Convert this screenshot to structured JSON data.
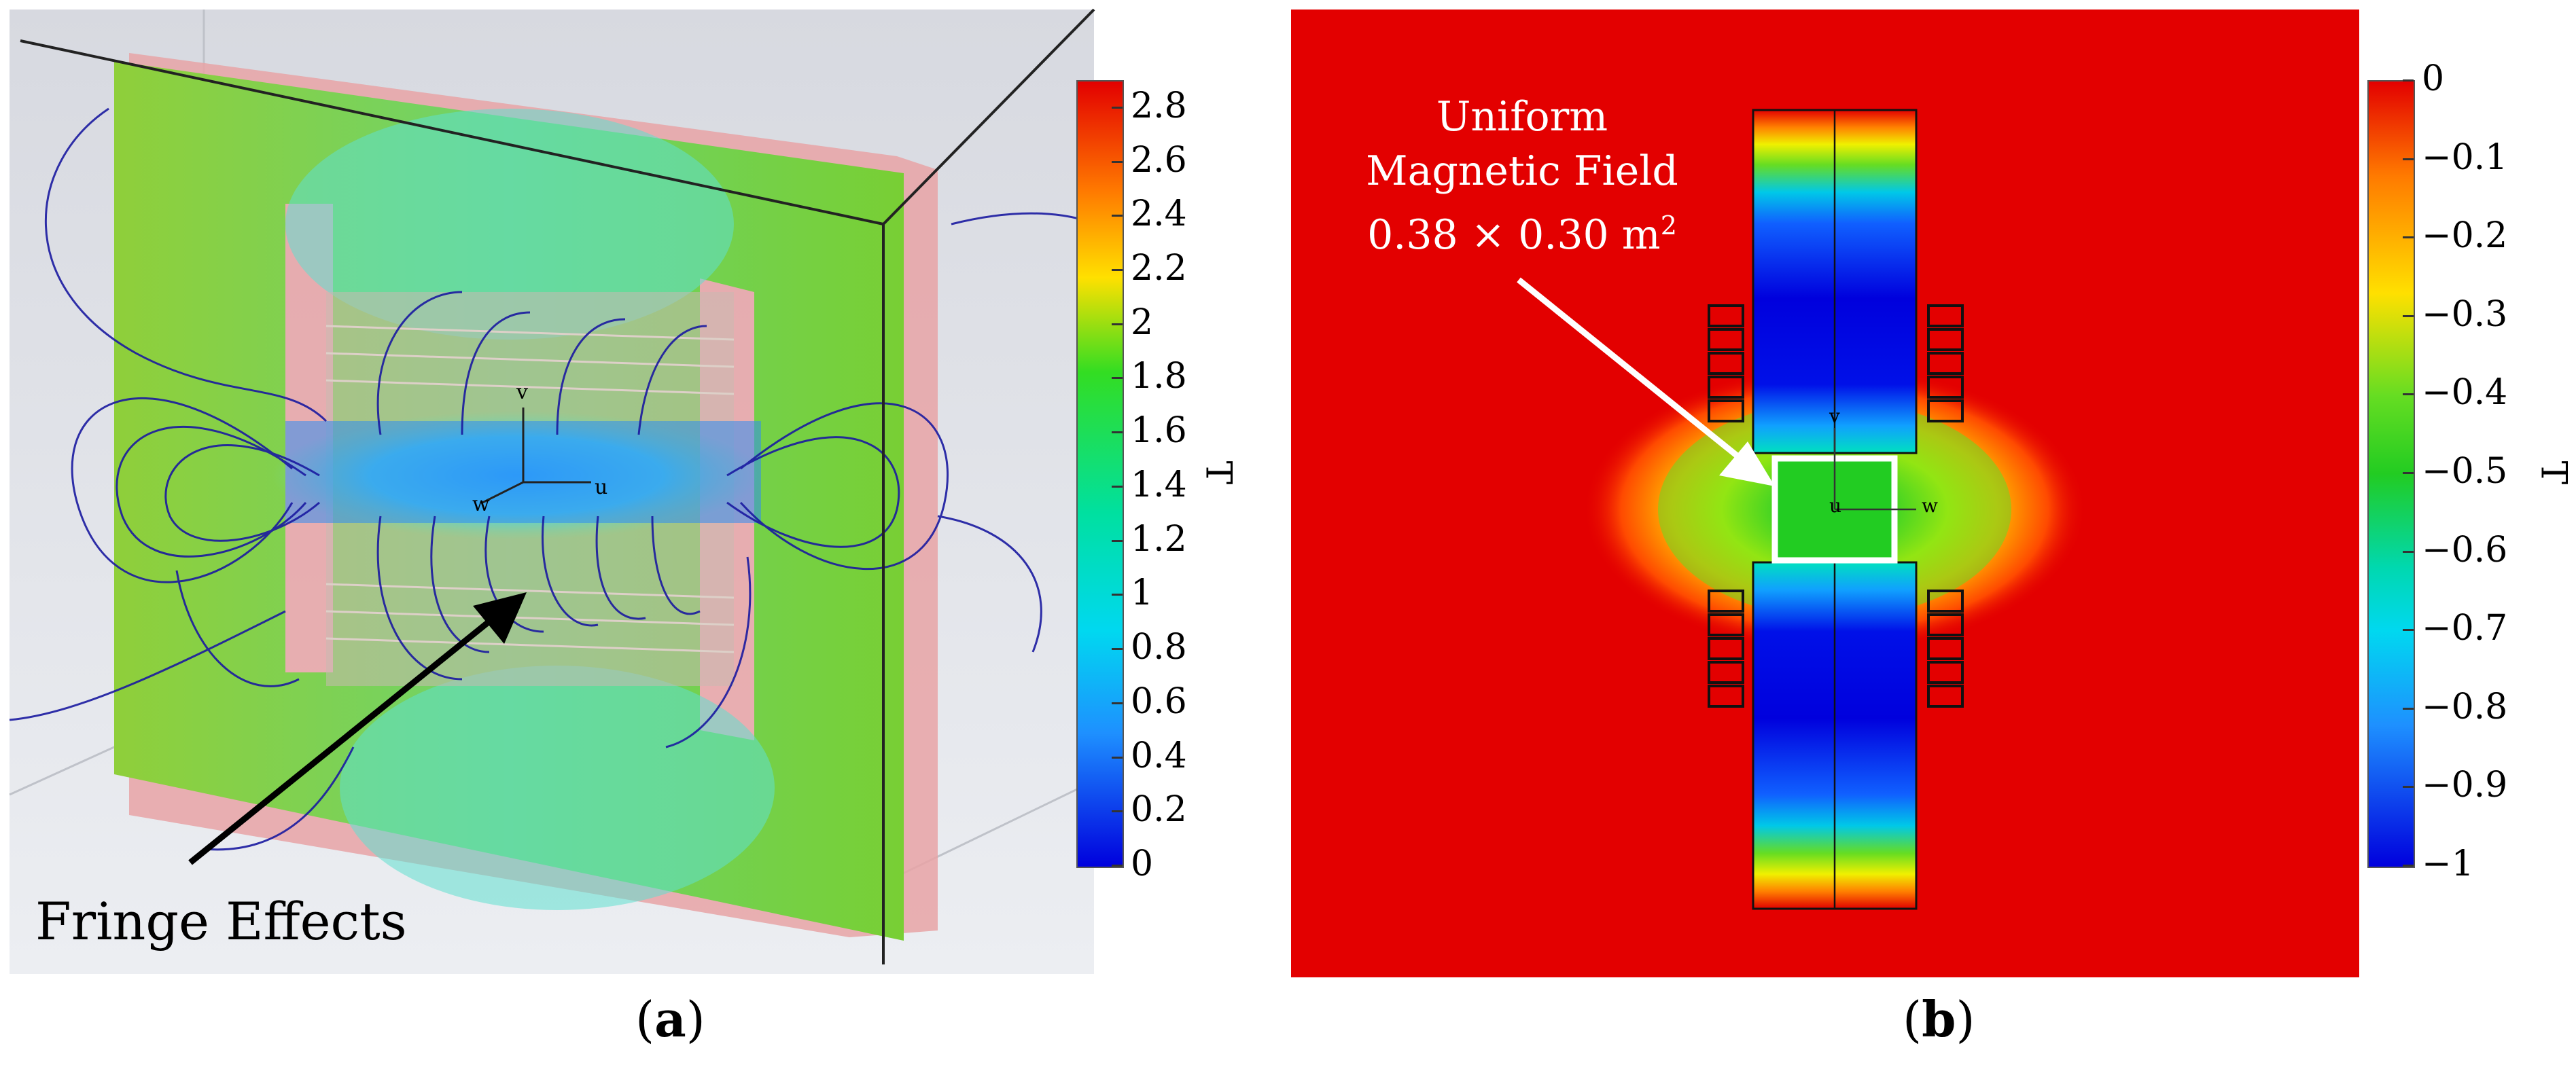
{
  "panel_a": {
    "annotation": "Fringe Effects",
    "caption_open": "(",
    "caption_letter": "a",
    "caption_close": ")",
    "colorbar": {
      "ticks": [
        "2.8",
        "2.6",
        "2.4",
        "2.2",
        "2",
        "1.8",
        "1.6",
        "1.4",
        "1.2",
        "1",
        "0.8",
        "0.6",
        "0.4",
        "0.2",
        "0"
      ],
      "min": 0,
      "max": 2.9,
      "unit": "T"
    },
    "axis_labels": [
      "v",
      "u",
      "w"
    ]
  },
  "panel_b": {
    "annotation_line1": "Uniform",
    "annotation_line2": "Magnetic Field",
    "annotation_line3_value": "0.38 × 0.30 m",
    "annotation_line3_sup": "2",
    "caption_open": "(",
    "caption_letter": "b",
    "caption_close": ")",
    "colorbar": {
      "ticks": [
        "0",
        "−0.1",
        "−0.2",
        "−0.3",
        "−0.4",
        "−0.5",
        "−0.6",
        "−0.7",
        "−0.8",
        "−0.9",
        "−1"
      ],
      "min": -1,
      "max": 0,
      "unit": "T"
    },
    "axis_labels": [
      "v",
      "u",
      "w"
    ]
  },
  "colors": {
    "jet_red": "#e30000",
    "jet_blue": "#0000dd",
    "field_green": "#22cc22",
    "frame_green": "#7ad234",
    "flux_blue": "#1a1aa0"
  }
}
